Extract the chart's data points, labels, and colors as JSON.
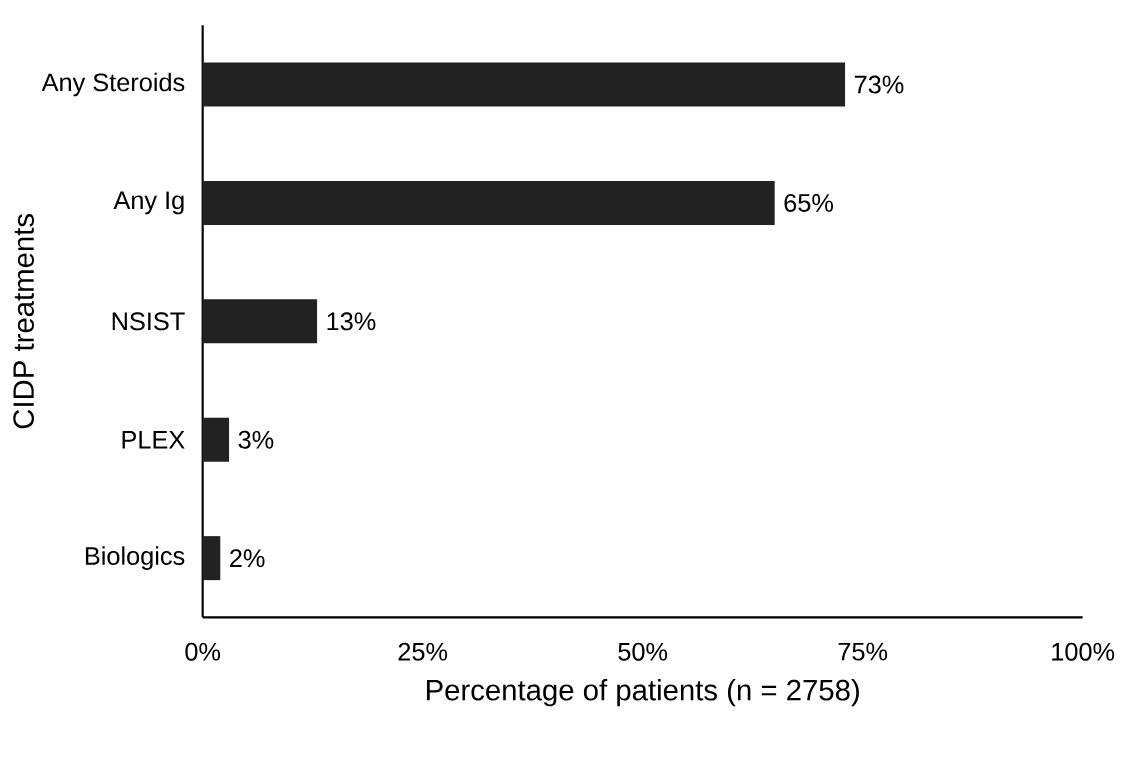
{
  "chart_data": {
    "type": "bar",
    "orientation": "horizontal",
    "xlabel": "Percentage of patients (n = 2758)",
    "ylabel": "CIDP treatments",
    "categories": [
      "Any Steroids",
      "Any Ig",
      "NSIST",
      "PLEX",
      "Biologics"
    ],
    "values": [
      73,
      65,
      13,
      3,
      2
    ],
    "value_labels": [
      "73%",
      "65%",
      "13%",
      "3%",
      "2%"
    ],
    "color": "#222222",
    "xlim": [
      0,
      100
    ],
    "xticks": [
      {
        "value": 0,
        "label": "0%"
      },
      {
        "value": 25,
        "label": "25%"
      },
      {
        "value": 50,
        "label": "50%"
      },
      {
        "value": 75,
        "label": "75%"
      },
      {
        "value": 100,
        "label": "100%"
      }
    ]
  }
}
